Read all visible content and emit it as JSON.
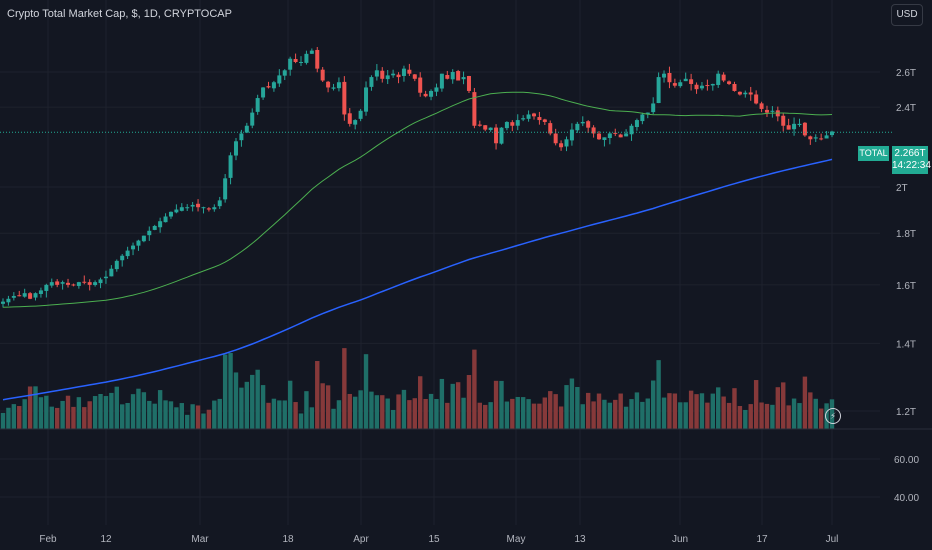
{
  "header": {
    "title": "Crypto Total Market Cap, $, 1D, CRYPTOCAP",
    "currency_label": "USD"
  },
  "price_tag": {
    "symbol": "TOTAL",
    "value": "2.266T",
    "countdown": "14:22:34"
  },
  "live_icon": "lightning-icon",
  "colors": {
    "background": "#131722",
    "grid": "#1e222d",
    "up": "#26a69a",
    "down": "#ef5350",
    "volume_up": "#1f6f68",
    "volume_down": "#86393a",
    "ma_fast": "#4caf50",
    "ma_slow": "#2962ff",
    "text": "#b2b5be",
    "badge": "#22ab94"
  },
  "chart_data": {
    "type": "candlestick",
    "title": "Crypto Total Market Cap, $, 1D, CRYPTOCAP",
    "price_axis": {
      "scale": "log",
      "ticks": [
        "2.6T",
        "2.4T",
        "2T",
        "1.8T",
        "1.6T",
        "1.4T",
        "1.2T"
      ],
      "tick_values": [
        2.6,
        2.4,
        2.0,
        1.8,
        1.6,
        1.4,
        1.2
      ],
      "unit": "T"
    },
    "volume_axis": {
      "ticks": [
        "60.00",
        "40.00"
      ],
      "tick_values": [
        60,
        40
      ]
    },
    "x_ticks": [
      "Feb",
      "12",
      "Mar",
      "18",
      "Apr",
      "15",
      "May",
      "13",
      "Jun",
      "17",
      "Jul"
    ],
    "close": [
      1.54,
      1.55,
      1.56,
      1.56,
      1.57,
      1.55,
      1.57,
      1.58,
      1.6,
      1.61,
      1.6,
      1.61,
      1.6,
      1.6,
      1.61,
      1.61,
      1.6,
      1.61,
      1.62,
      1.63,
      1.66,
      1.69,
      1.71,
      1.73,
      1.75,
      1.77,
      1.79,
      1.81,
      1.83,
      1.85,
      1.87,
      1.89,
      1.9,
      1.91,
      1.91,
      1.92,
      1.91,
      1.91,
      1.9,
      1.91,
      1.94,
      2.04,
      2.15,
      2.22,
      2.26,
      2.3,
      2.37,
      2.45,
      2.51,
      2.51,
      2.54,
      2.58,
      2.61,
      2.68,
      2.66,
      2.66,
      2.71,
      2.73,
      2.62,
      2.55,
      2.51,
      2.51,
      2.54,
      2.36,
      2.31,
      2.33,
      2.38,
      2.51,
      2.57,
      2.61,
      2.56,
      2.58,
      2.59,
      2.57,
      2.62,
      2.59,
      2.56,
      2.48,
      2.46,
      2.49,
      2.51,
      2.59,
      2.56,
      2.6,
      2.55,
      2.57,
      2.49,
      2.3,
      2.3,
      2.28,
      2.29,
      2.21,
      2.29,
      2.32,
      2.3,
      2.33,
      2.34,
      2.36,
      2.35,
      2.33,
      2.32,
      2.26,
      2.21,
      2.19,
      2.23,
      2.28,
      2.31,
      2.32,
      2.29,
      2.26,
      2.23,
      2.24,
      2.26,
      2.26,
      2.24,
      2.26,
      2.3,
      2.33,
      2.36,
      2.37,
      2.42,
      2.57,
      2.59,
      2.54,
      2.52,
      2.54,
      2.56,
      2.53,
      2.5,
      2.52,
      2.52,
      2.53,
      2.59,
      2.55,
      2.53,
      2.49,
      2.47,
      2.48,
      2.47,
      2.42,
      2.39,
      2.37,
      2.38,
      2.35,
      2.3,
      2.28,
      2.31,
      2.31,
      2.25,
      2.23,
      2.24,
      2.23,
      2.25,
      2.27
    ],
    "ma_fast_last": 2.36,
    "ma_slow_last": 2.13,
    "last_price": 2.266
  }
}
